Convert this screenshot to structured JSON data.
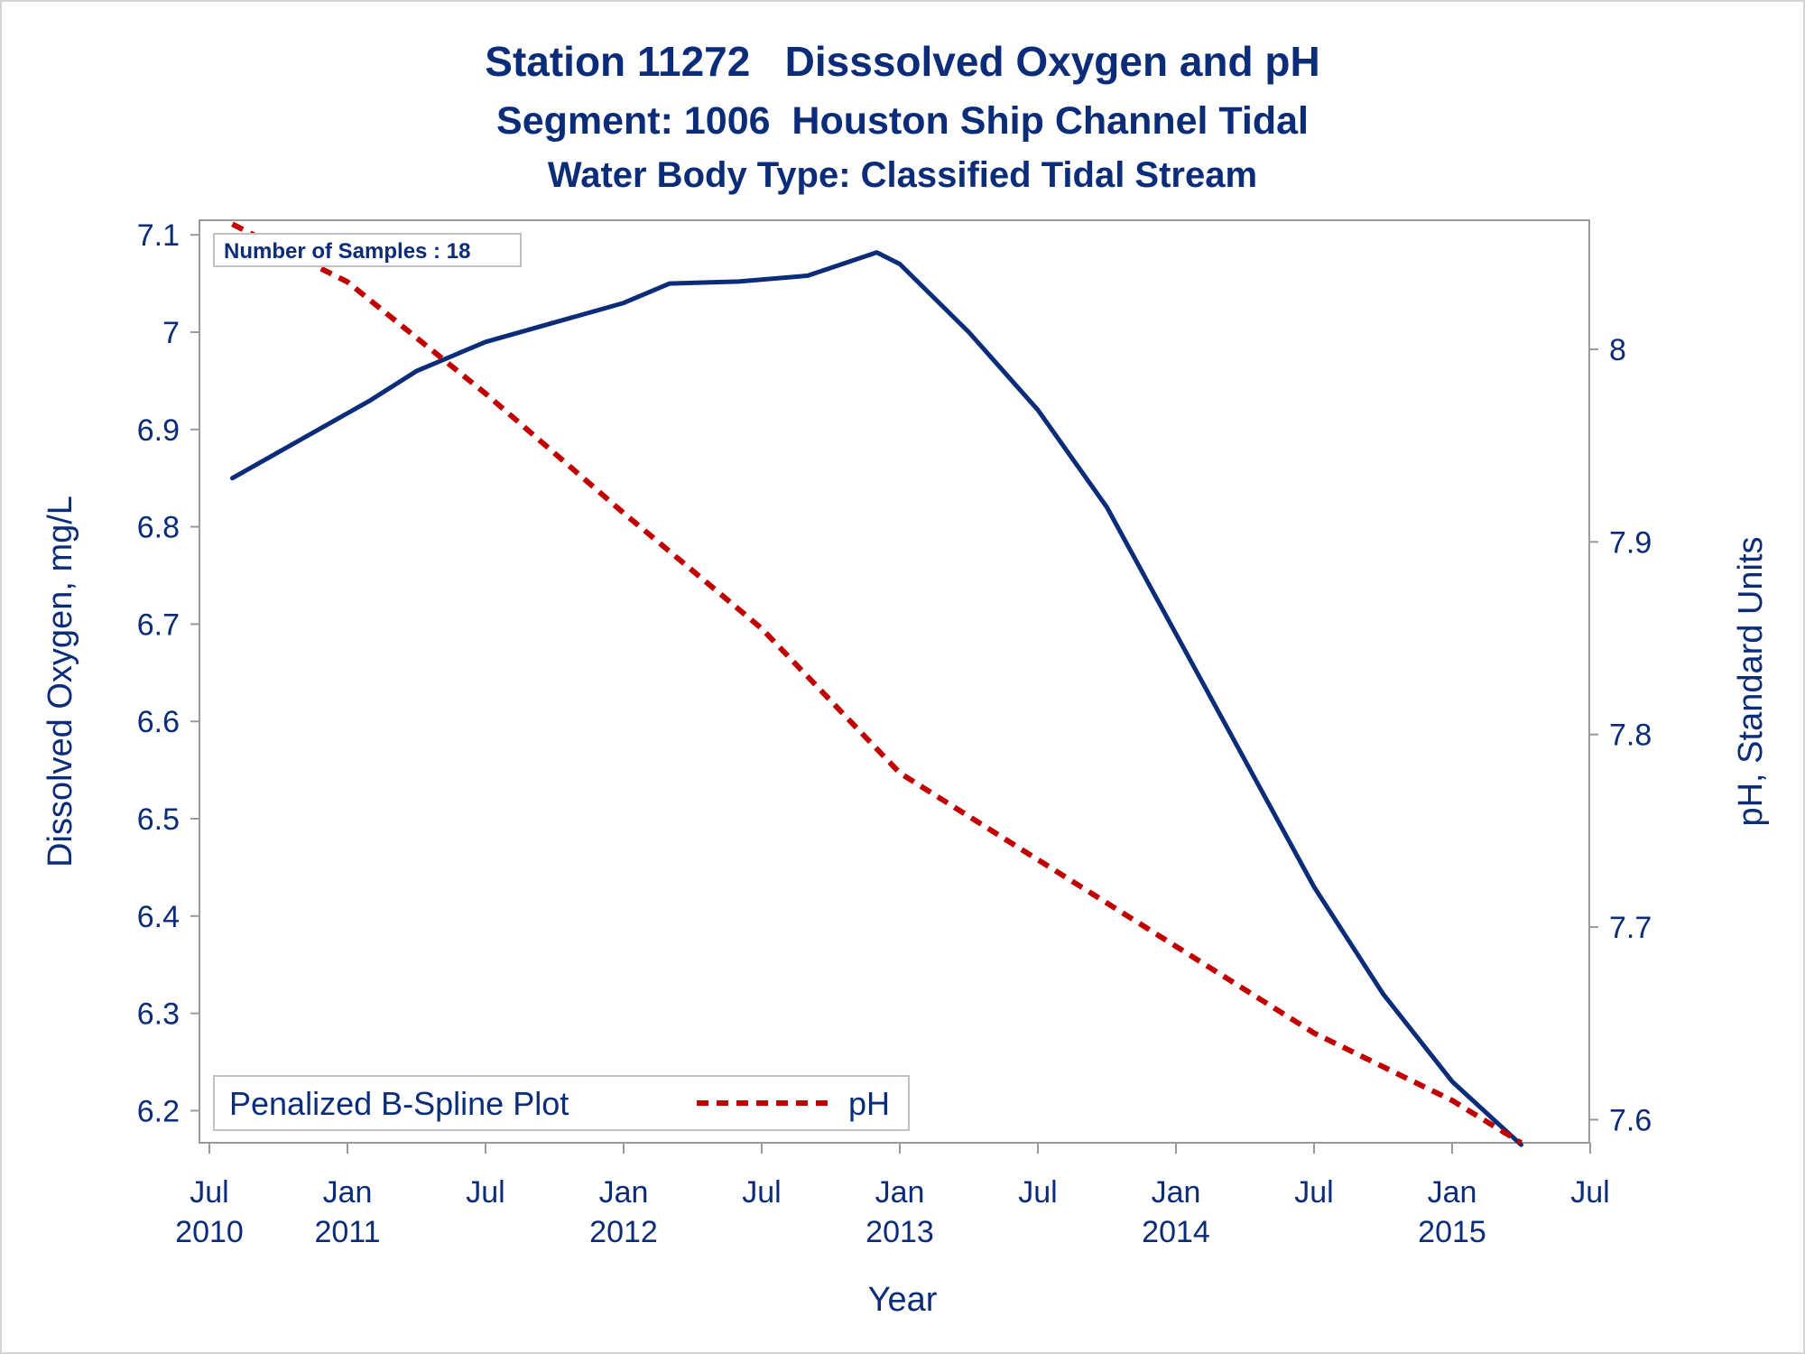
{
  "chart_data": {
    "type": "line",
    "title": "Station 11272   Disssolved Oxygen and pH",
    "subtitle": "Segment: 1006  Houston Ship Channel Tidal",
    "subtitle2": "Water Body Type: Classified Tidal Stream",
    "xlabel": "Year",
    "ylabel": "Dissolved Oxygen, mg/L",
    "y2label": "pH, Standard Units",
    "x_ticks": [
      {
        "line1": "Jul",
        "line2": "2010"
      },
      {
        "line1": "Jan",
        "line2": "2011"
      },
      {
        "line1": "Jul",
        "line2": ""
      },
      {
        "line1": "Jan",
        "line2": "2012"
      },
      {
        "line1": "Jul",
        "line2": ""
      },
      {
        "line1": "Jan",
        "line2": "2013"
      },
      {
        "line1": "Jul",
        "line2": ""
      },
      {
        "line1": "Jan",
        "line2": "2014"
      },
      {
        "line1": "Jul",
        "line2": ""
      },
      {
        "line1": "Jan",
        "line2": "2015"
      },
      {
        "line1": "Jul",
        "line2": ""
      }
    ],
    "y_ticks": [
      "6.2",
      "6.3",
      "6.4",
      "6.5",
      "6.6",
      "6.7",
      "6.8",
      "6.9",
      "7",
      "7.1"
    ],
    "y2_ticks": [
      "7.6",
      "7.7",
      "7.8",
      "7.9",
      "8"
    ],
    "xlim": [
      "2010-07",
      "2015-07"
    ],
    "ylim": [
      6.167,
      7.115
    ],
    "y2lim": [
      7.588,
      8.067
    ],
    "grid": false,
    "legend_position": "bottom-left",
    "legend_label": "Penalized B-Spline Plot",
    "annotation": "Number of Samples : 18",
    "series": [
      {
        "name": "",
        "axis": "left",
        "color": "#0b2c78",
        "style": "solid",
        "points": [
          [
            "2010-08",
            6.85
          ],
          [
            "2010-11",
            6.89
          ],
          [
            "2011-02",
            6.93
          ],
          [
            "2011-04",
            6.96
          ],
          [
            "2011-07",
            6.99
          ],
          [
            "2011-10",
            7.01
          ],
          [
            "2012-01",
            7.03
          ],
          [
            "2012-03",
            7.05
          ],
          [
            "2012-06",
            7.052
          ],
          [
            "2012-09",
            7.058
          ],
          [
            "2012-12",
            7.082
          ],
          [
            "2013-01",
            7.07
          ],
          [
            "2013-04",
            7.0
          ],
          [
            "2013-07",
            6.92
          ],
          [
            "2013-10",
            6.82
          ],
          [
            "2014-01",
            6.69
          ],
          [
            "2014-04",
            6.56
          ],
          [
            "2014-07",
            6.43
          ],
          [
            "2014-10",
            6.32
          ],
          [
            "2015-01",
            6.23
          ],
          [
            "2015-04",
            6.165
          ]
        ]
      },
      {
        "name": "pH",
        "axis": "right",
        "color": "#c00000",
        "style": "dashed",
        "points": [
          [
            "2010-08",
            8.065
          ],
          [
            "2011-01",
            8.035
          ],
          [
            "2011-07",
            7.977
          ],
          [
            "2012-01",
            7.915
          ],
          [
            "2012-07",
            7.855
          ],
          [
            "2013-01",
            7.78
          ],
          [
            "2013-07",
            7.735
          ],
          [
            "2014-01",
            7.69
          ],
          [
            "2014-07",
            7.645
          ],
          [
            "2015-01",
            7.61
          ],
          [
            "2015-04",
            7.588
          ]
        ]
      }
    ]
  }
}
